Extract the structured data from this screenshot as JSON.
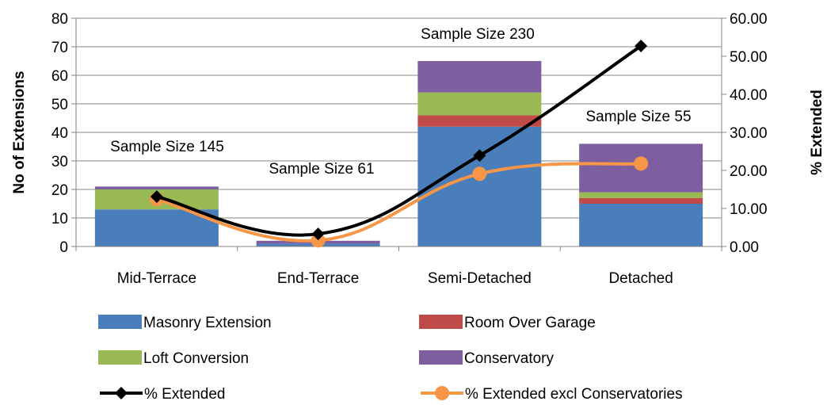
{
  "chart_data": {
    "type": "bar",
    "stacked": true,
    "categories": [
      "Mid-Terrace",
      "End-Terrace",
      "Semi-Detached",
      "Detached"
    ],
    "series": [
      {
        "name": "Masonry Extension",
        "color": "#4a7ebb",
        "values": [
          13,
          1,
          42,
          15
        ]
      },
      {
        "name": "Room Over Garage",
        "color": "#be4b48",
        "values": [
          0,
          0,
          4,
          2
        ]
      },
      {
        "name": "Loft Conversion",
        "color": "#98b954",
        "values": [
          7,
          0,
          8,
          2
        ]
      },
      {
        "name": "Conservatory",
        "color": "#7d5fa0",
        "values": [
          1,
          1,
          11,
          17
        ]
      }
    ],
    "line_series": [
      {
        "name": "% Extended",
        "color": "#000000",
        "marker": "diamond",
        "axis": "right",
        "values": [
          13.1,
          3.3,
          23.9,
          52.7
        ]
      },
      {
        "name": "% Extended excl Conservatories",
        "color": "#f79646",
        "marker": "circle",
        "axis": "right",
        "values": [
          12.4,
          1.6,
          19.1,
          21.8
        ]
      }
    ],
    "annotations": [
      "Sample Size 145",
      "Sample Size 61",
      "Sample Size 230",
      "Sample Size 55"
    ],
    "ylabel": "No of Extensions",
    "y2label": "% Extended",
    "ylim": [
      0,
      80
    ],
    "y2lim": [
      0,
      60
    ],
    "yticks": [
      "0",
      "10",
      "20",
      "30",
      "40",
      "50",
      "60",
      "70",
      "80"
    ],
    "y2ticks": [
      "0.00",
      "10.00",
      "20.00",
      "30.00",
      "40.00",
      "50.00",
      "60.00"
    ],
    "grid": true,
    "legend_position": "bottom"
  }
}
